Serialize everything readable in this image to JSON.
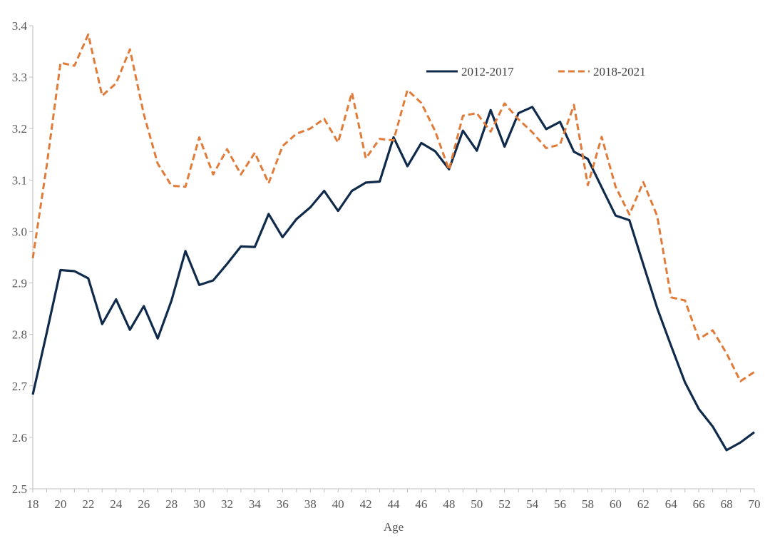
{
  "chart_data": {
    "type": "line",
    "title": "",
    "xlabel": "Age",
    "ylabel": "",
    "xlim": [
      18,
      70
    ],
    "ylim": [
      2.5,
      3.4
    ],
    "x_ticks": [
      18,
      20,
      22,
      24,
      26,
      28,
      30,
      32,
      34,
      36,
      38,
      40,
      42,
      44,
      46,
      48,
      50,
      52,
      54,
      56,
      58,
      60,
      62,
      64,
      66,
      68,
      70
    ],
    "y_ticks": [
      "2.5",
      "2.6",
      "2.7",
      "2.8",
      "2.9",
      "3.0",
      "3.1",
      "3.2",
      "3.3",
      "3.4"
    ],
    "grid": false,
    "legend_position": "top-right",
    "x": [
      18,
      19,
      20,
      21,
      22,
      23,
      24,
      25,
      26,
      27,
      28,
      29,
      30,
      31,
      32,
      33,
      34,
      35,
      36,
      37,
      38,
      39,
      40,
      41,
      42,
      43,
      44,
      45,
      46,
      47,
      48,
      49,
      50,
      51,
      52,
      53,
      54,
      55,
      56,
      57,
      58,
      59,
      60,
      61,
      62,
      63,
      64,
      65,
      66,
      67,
      68,
      69,
      70
    ],
    "series": [
      {
        "name": "2012-2017",
        "color": "#0f2a4a",
        "dash": "solid",
        "values": [
          2.683,
          2.803,
          2.925,
          2.923,
          2.909,
          2.82,
          2.868,
          2.809,
          2.855,
          2.792,
          2.866,
          2.962,
          2.896,
          2.905,
          2.937,
          2.971,
          2.97,
          3.034,
          2.989,
          3.024,
          3.047,
          3.079,
          3.04,
          3.079,
          3.095,
          3.097,
          3.183,
          3.127,
          3.172,
          3.156,
          3.121,
          3.196,
          3.157,
          3.236,
          3.165,
          3.23,
          3.242,
          3.199,
          3.213,
          3.155,
          3.141,
          3.086,
          3.031,
          3.022,
          2.936,
          2.851,
          2.778,
          2.707,
          2.655,
          2.621,
          2.575,
          2.59,
          2.61
        ]
      },
      {
        "name": "2018-2021",
        "color": "#e07b39",
        "dash": "dashed",
        "values": [
          2.948,
          3.128,
          3.328,
          3.322,
          3.383,
          3.264,
          3.288,
          3.354,
          3.228,
          3.132,
          3.089,
          3.087,
          3.183,
          3.111,
          3.16,
          3.111,
          3.153,
          3.094,
          3.166,
          3.19,
          3.2,
          3.219,
          3.173,
          3.27,
          3.142,
          3.18,
          3.177,
          3.275,
          3.25,
          3.195,
          3.12,
          3.225,
          3.23,
          3.194,
          3.249,
          3.218,
          3.193,
          3.162,
          3.169,
          3.246,
          3.09,
          3.184,
          3.087,
          3.033,
          3.096,
          3.03,
          2.872,
          2.866,
          2.791,
          2.808,
          2.763,
          2.709,
          2.727
        ]
      }
    ]
  }
}
